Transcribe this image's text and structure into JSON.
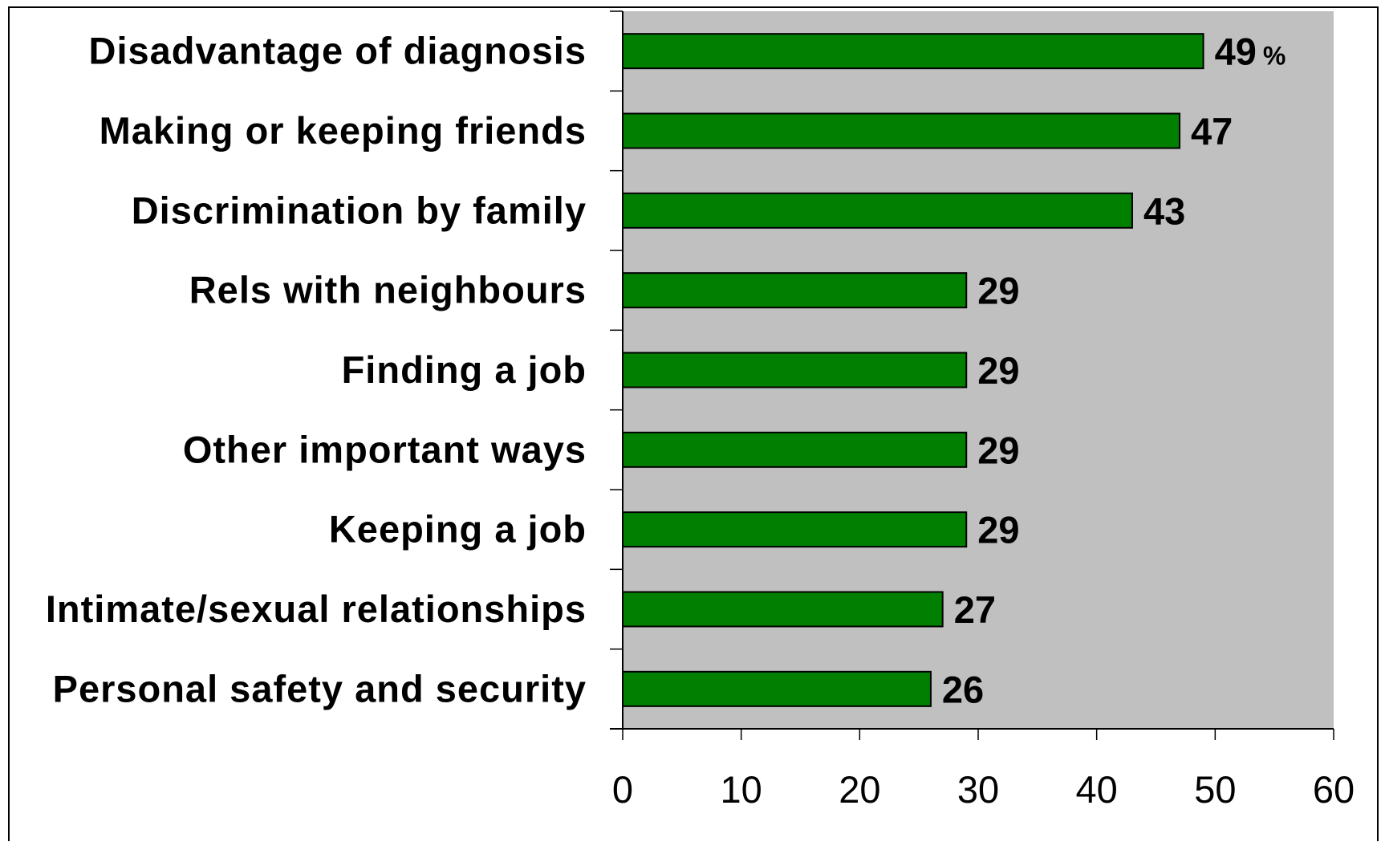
{
  "chart_data": {
    "type": "bar",
    "orientation": "horizontal",
    "categories": [
      "Disadvantage of diagnosis",
      "Making or keeping friends",
      "Discrimination by family",
      "Rels with neighbours",
      "Finding a job",
      "Other important ways",
      "Keeping a job",
      "Intimate/sexual relationships",
      "Personal safety and security"
    ],
    "values": [
      49,
      47,
      43,
      29,
      29,
      29,
      29,
      27,
      26
    ],
    "value_labels": [
      "49",
      "47",
      "43",
      "29",
      "29",
      "29",
      "29",
      "27",
      "26"
    ],
    "unit_label": "%",
    "xlim": [
      0,
      60
    ],
    "xticks": [
      "0",
      "10",
      "20",
      "30",
      "40",
      "50",
      "60"
    ],
    "title": "",
    "xlabel": "",
    "ylabel": "",
    "grid": false,
    "colors": {
      "bar": "#007f00",
      "plot_background": "#c0c0c0",
      "bar_border": "#000000"
    }
  }
}
